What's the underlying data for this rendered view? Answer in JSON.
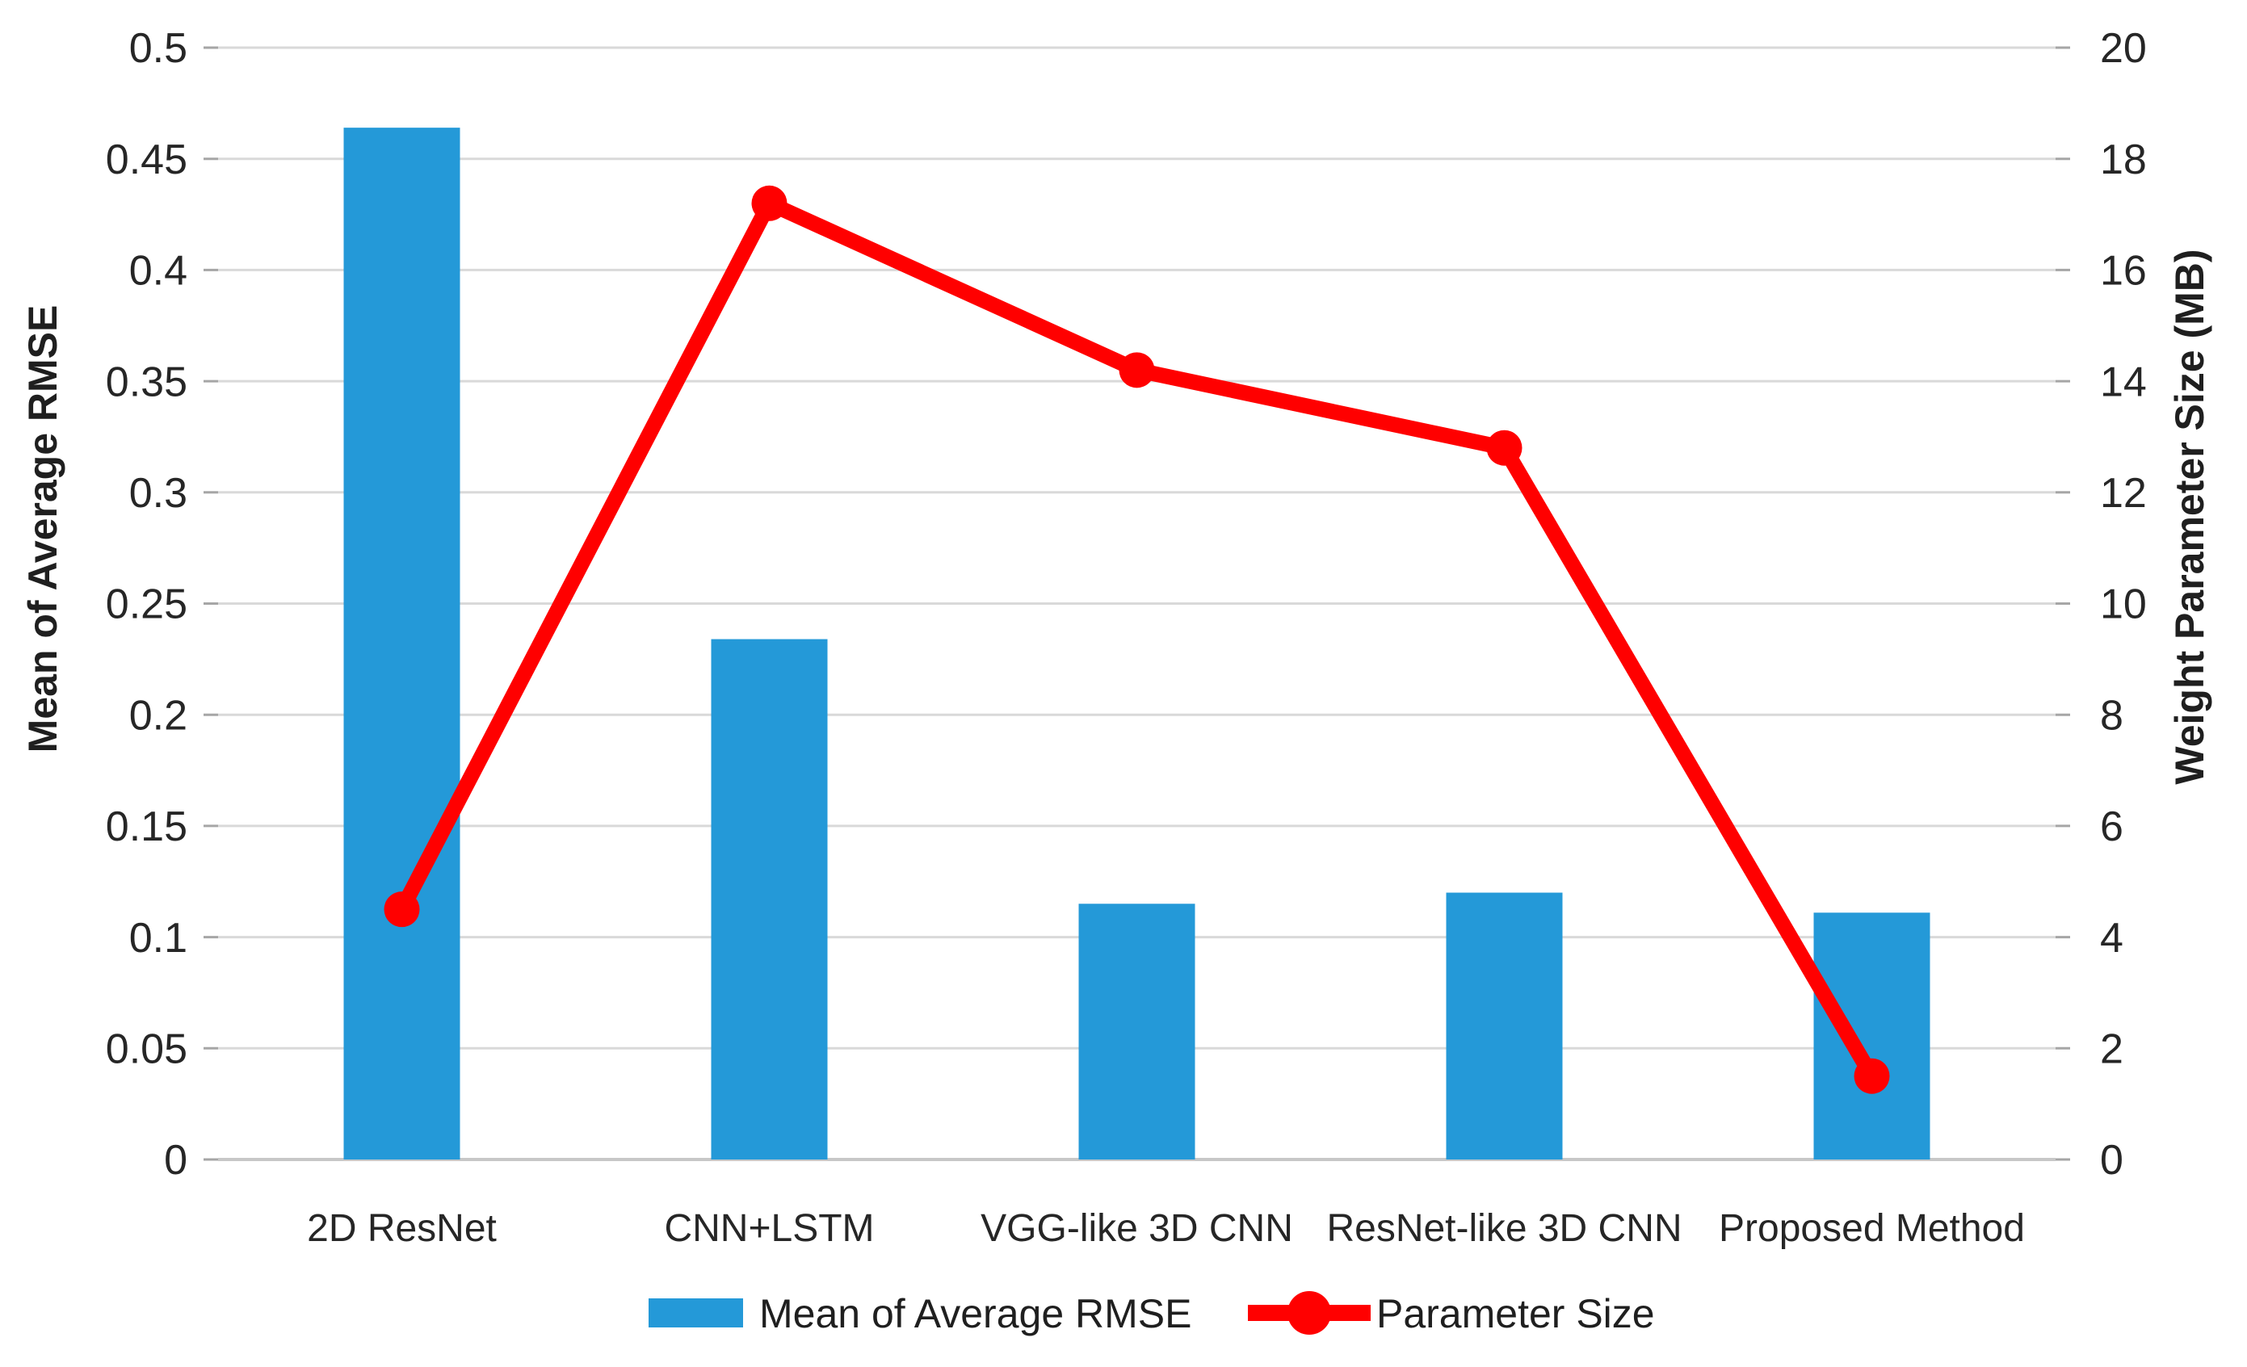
{
  "chart_data": {
    "type": "bar",
    "subtype": "combo-bar-line-dual-axis",
    "categories": [
      "2D ResNet",
      "CNN+LSTM",
      "VGG-like 3D CNN",
      "ResNet-like 3D CNN",
      "Proposed Method"
    ],
    "series": [
      {
        "name": "Mean of Average RMSE",
        "plot": "bar",
        "axis": "left",
        "color": "#2499D8",
        "values": [
          0.464,
          0.234,
          0.115,
          0.12,
          0.111
        ]
      },
      {
        "name": "Parameter Size",
        "plot": "line",
        "axis": "right",
        "color": "#FF0000",
        "values": [
          4.5,
          17.2,
          14.2,
          12.8,
          1.5
        ]
      }
    ],
    "left_axis": {
      "title": "Mean of Average RMSE",
      "min": 0,
      "max": 0.5,
      "tick_step": 0.05,
      "tick_labels": [
        "0.5",
        "0.45",
        "0.4",
        "0.35",
        "0.3",
        "0.25",
        "0.2",
        "0.15",
        "0.1",
        "0.05",
        "0"
      ]
    },
    "right_axis": {
      "title": "Weight Parameter Size (MB)",
      "min": 0,
      "max": 20,
      "tick_step": 2,
      "tick_labels": [
        "20",
        "18",
        "16",
        "14",
        "12",
        "10",
        "8",
        "6",
        "4",
        "2",
        "0"
      ]
    },
    "grid": true,
    "legend": {
      "position": "bottom",
      "items": [
        {
          "label": "Mean of Average RMSE",
          "swatch": "bar-square",
          "color": "#2499D8"
        },
        {
          "label": "Parameter Size",
          "swatch": "line-with-marker",
          "color": "#FF0000"
        }
      ]
    },
    "colors": {
      "bar": "#2499D8",
      "line": "#FF0000",
      "gridline": "#D9D9D9",
      "axis_line": "#C7C7C7",
      "tick": "#A6A6A6",
      "text": "#262626"
    }
  }
}
